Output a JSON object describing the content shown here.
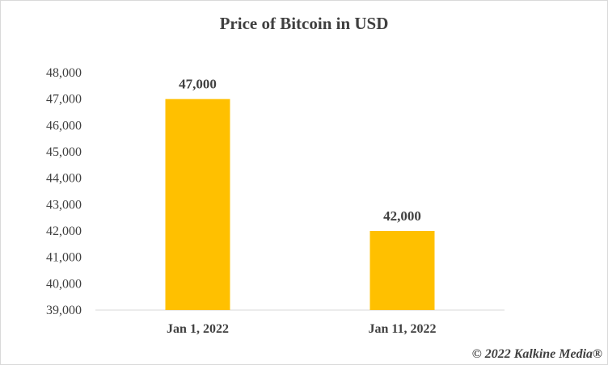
{
  "chart_data": {
    "type": "bar",
    "title": "Price of Bitcoin in USD",
    "categories": [
      "Jan 1, 2022",
      "Jan 11, 2022"
    ],
    "values": [
      47000,
      42000
    ],
    "data_labels": [
      "47,000",
      "42,000"
    ],
    "ylim": [
      39000,
      48000
    ],
    "yticks": [
      "39,000",
      "40,000",
      "41,000",
      "42,000",
      "43,000",
      "44,000",
      "45,000",
      "46,000",
      "47,000",
      "48,000"
    ],
    "xlabel": "",
    "ylabel": "",
    "grid": false,
    "bar_color": "#FFC000"
  },
  "footer": {
    "copyright": "© 2022 Kalkine Media®"
  }
}
